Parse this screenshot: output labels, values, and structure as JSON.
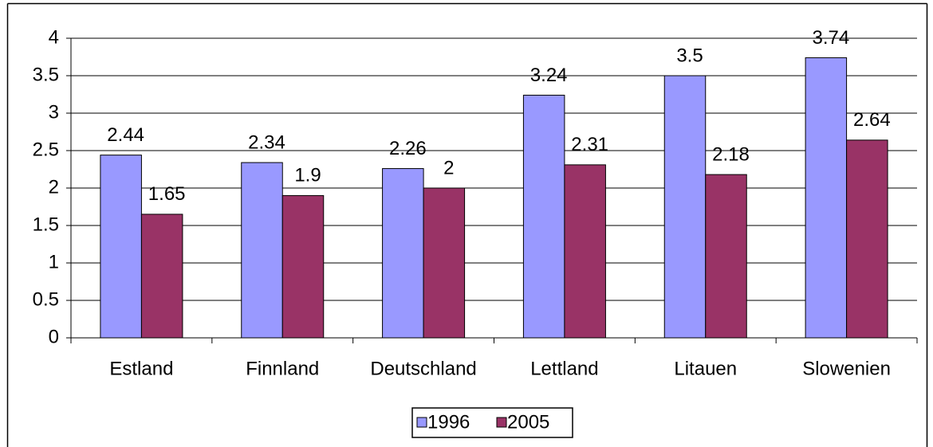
{
  "chart_data": {
    "type": "bar",
    "categories": [
      "Estland",
      "Finnland",
      "Deutschland",
      "Lettland",
      "Litauen",
      "Slowenien"
    ],
    "series": [
      {
        "name": "1996",
        "color": "#9999ff",
        "values": [
          2.44,
          2.34,
          2.26,
          3.24,
          3.5,
          3.74
        ]
      },
      {
        "name": "2005",
        "color": "#993366",
        "values": [
          1.65,
          1.9,
          2,
          2.31,
          2.18,
          2.64
        ]
      }
    ],
    "ylim": [
      0,
      4
    ],
    "yticks": [
      0,
      0.5,
      1,
      1.5,
      2,
      2.5,
      3,
      3.5,
      4
    ],
    "grid": true,
    "legend": "bottom"
  }
}
